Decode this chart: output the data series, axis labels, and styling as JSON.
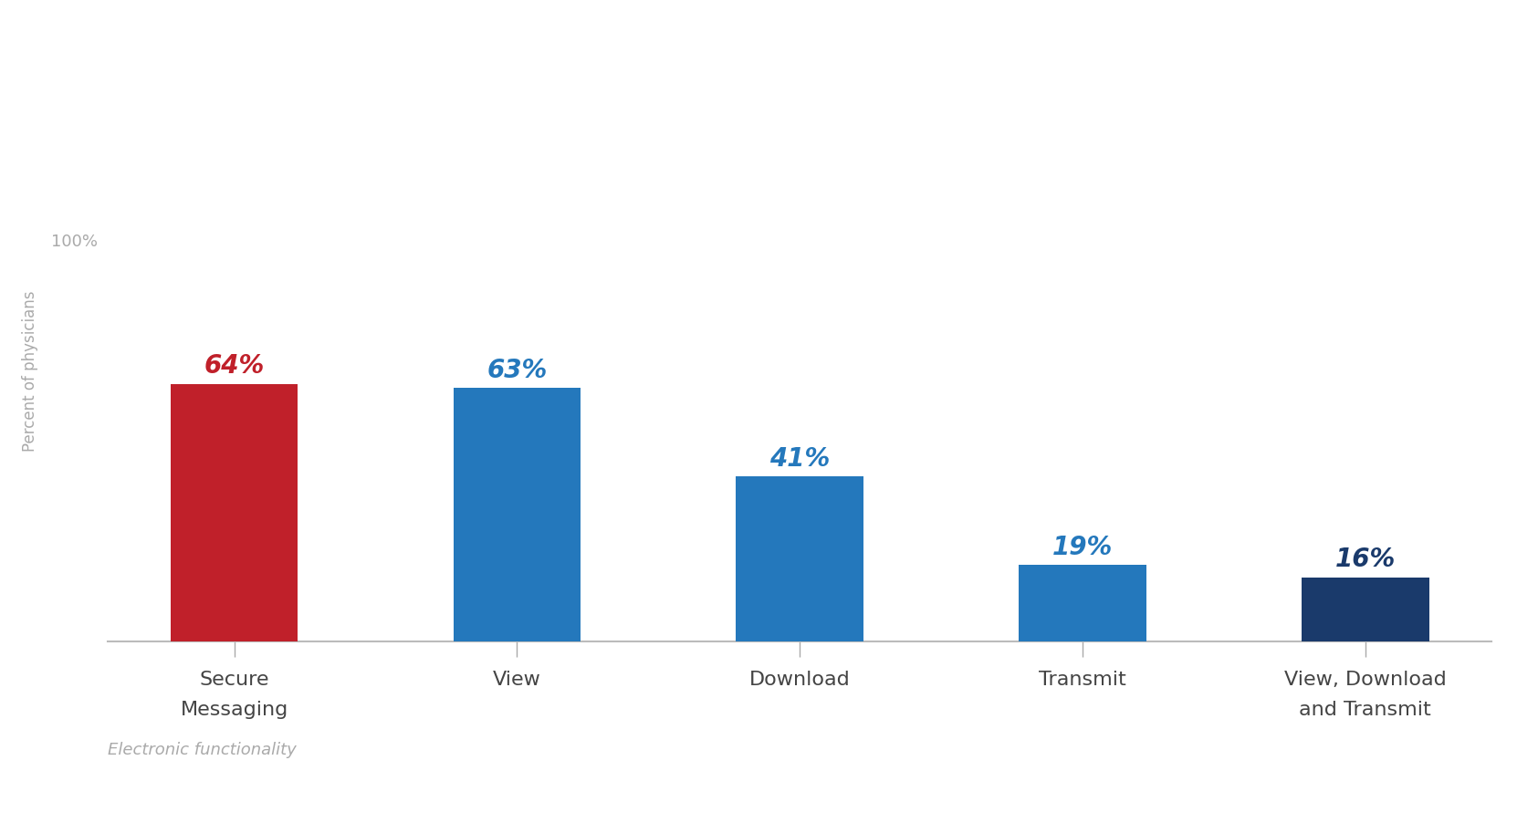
{
  "categories": [
    "Secure\nMessaging",
    "View",
    "Download",
    "Transmit",
    "View, Download\nand Transmit"
  ],
  "values": [
    64,
    63,
    41,
    19,
    16
  ],
  "bar_colors": [
    "#c0202a",
    "#2478bc",
    "#2478bc",
    "#2478bc",
    "#1a3a6b"
  ],
  "value_labels": [
    "64%",
    "63%",
    "41%",
    "19%",
    "16%"
  ],
  "value_label_colors": [
    "#c0202a",
    "#2478bc",
    "#2478bc",
    "#2478bc",
    "#1a3a6b"
  ],
  "ylabel": "Percent of physicians",
  "xlabel": "Electronic functionality",
  "ytick_label": "100%",
  "ylim": [
    0,
    100
  ],
  "background_color": "#ffffff",
  "bar_width": 0.45,
  "value_fontsize": 20,
  "label_fontsize": 16,
  "ylabel_fontsize": 12,
  "xlabel_fontsize": 13
}
